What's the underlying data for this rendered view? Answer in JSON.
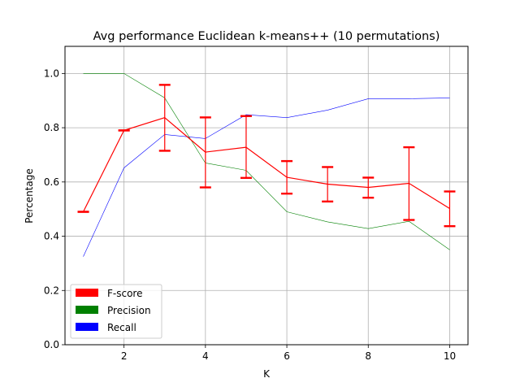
{
  "chart_data": {
    "type": "line",
    "title": "Avg performance Euclidean k-means++ (10 permutations)",
    "xlabel": "K",
    "ylabel": "Percentage",
    "xlim": [
      0.55,
      10.45
    ],
    "ylim": [
      0.0,
      1.1
    ],
    "x_ticks": [
      2,
      4,
      6,
      8,
      10
    ],
    "y_ticks": [
      0.0,
      0.2,
      0.4,
      0.6,
      0.8,
      1.0
    ],
    "x_tick_labels": [
      "2",
      "4",
      "6",
      "8",
      "10"
    ],
    "y_tick_labels": [
      "0.0",
      "0.2",
      "0.4",
      "0.6",
      "0.8",
      "1.0"
    ],
    "grid": true,
    "legend_position": "bottom-left",
    "x": [
      1,
      2,
      3,
      4,
      5,
      6,
      7,
      8,
      9,
      10
    ],
    "series": [
      {
        "name": "F-score",
        "color": "#ff0000",
        "values": [
          0.49,
          0.79,
          0.837,
          0.71,
          0.728,
          0.617,
          0.592,
          0.58,
          0.595,
          0.502
        ],
        "error_low": [
          0.49,
          0.79,
          0.715,
          0.58,
          0.615,
          0.557,
          0.528,
          0.542,
          0.46,
          0.437
        ],
        "error_high": [
          0.49,
          0.79,
          0.958,
          0.838,
          0.843,
          0.677,
          0.655,
          0.616,
          0.728,
          0.565
        ]
      },
      {
        "name": "Precision",
        "color": "#008000",
        "values": [
          1.0,
          1.0,
          0.91,
          0.67,
          0.643,
          0.49,
          0.453,
          0.428,
          0.455,
          0.35
        ]
      },
      {
        "name": "Recall",
        "color": "#0000ff",
        "values": [
          0.325,
          0.652,
          0.775,
          0.76,
          0.848,
          0.837,
          0.865,
          0.907,
          0.907,
          0.91
        ]
      }
    ]
  }
}
